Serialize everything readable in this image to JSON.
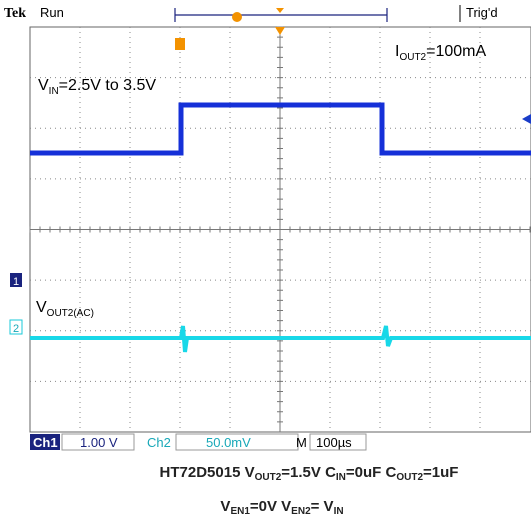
{
  "header": {
    "brand": "Tek",
    "state": "Run",
    "trigger": "Trig'd"
  },
  "annotations": {
    "iout": [
      "I",
      "OUT2",
      "=100mA"
    ],
    "vin": [
      "V",
      "IN",
      "=2.5V to 3.5V"
    ],
    "vout": [
      "V",
      "OUT2(AC)"
    ]
  },
  "markers": {
    "ch1": "1",
    "ch2": "2"
  },
  "status": {
    "ch1": "Ch1",
    "ch1_scale": "1.00 V",
    "ch2": "Ch2",
    "ch2_scale": "50.0mV",
    "timebase_label": "M",
    "timebase": "100µs"
  },
  "caption": {
    "line1": [
      "HT72D5015 V",
      "OUT2",
      "=1.5V C",
      "IN",
      "=0uF C",
      "OUT2",
      "=1uF"
    ],
    "line2": [
      "V",
      "EN1",
      "=0V V",
      "EN2",
      "= V",
      "IN"
    ]
  }
}
